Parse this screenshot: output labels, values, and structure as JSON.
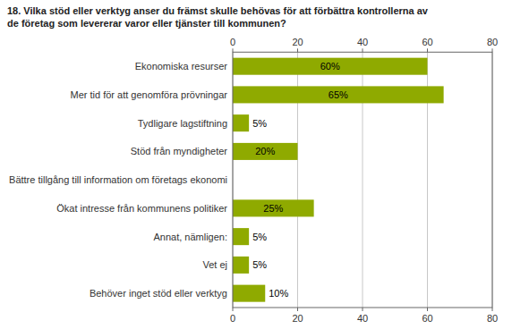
{
  "chart_data": {
    "type": "bar",
    "orientation": "horizontal",
    "title": "18. Vilka stöd eller verktyg anser du främst skulle behövas för att förbättra kontrollerna av\nde företag som levererar varor eller tjänster till kommunen?",
    "categories": [
      "Ekonomiska resurser",
      "Mer tid för att genomföra prövningar",
      "Tydligare lagstiftning",
      "Stöd från myndigheter",
      "Bättre tillgång till information om företags ekonomi",
      "Ökat intresse från kommunens politiker",
      "Annat, nämligen:",
      "Vet ej",
      "Behöver inget stöd eller verktyg"
    ],
    "values": [
      60,
      65,
      5,
      20,
      0,
      25,
      5,
      5,
      10
    ],
    "value_labels": [
      "60%",
      "65%",
      "5%",
      "20%",
      null,
      "25%",
      "5%",
      "5%",
      "10%"
    ],
    "data_labels": true,
    "color": "#8faa00",
    "xlim": [
      0,
      80
    ],
    "xticks": [
      0,
      20,
      40,
      60,
      80
    ],
    "grid": true
  }
}
